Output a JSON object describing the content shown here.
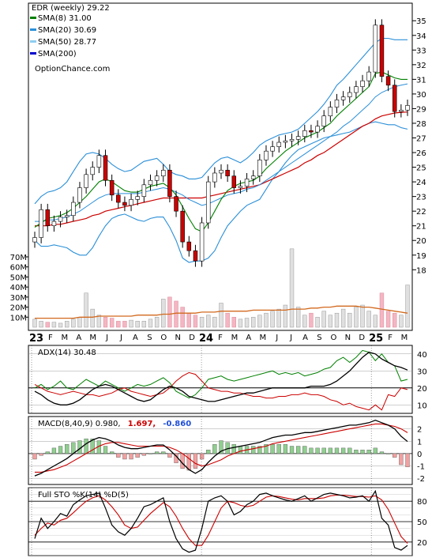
{
  "chart_data": {
    "type": "line",
    "title": "EDR (weekly) 29.22",
    "watermark": "OptionChance.com",
    "x_labels": [
      "23",
      "F",
      "M",
      "A",
      "M",
      "J",
      "J",
      "A",
      "S",
      "O",
      "N",
      "D",
      "24",
      "F",
      "M",
      "A",
      "M",
      "J",
      "J",
      "A",
      "S",
      "O",
      "N",
      "D",
      "25",
      "F",
      "M"
    ],
    "price_panel": {
      "legend": [
        {
          "label": "SMA(8) 31.00",
          "color": "#008000"
        },
        {
          "label": "SMA(20) 30.69",
          "color": "#2a8fd8"
        },
        {
          "label": "SMA(50) 28.77",
          "color": "#8fcdf0"
        },
        {
          "label": "SMA(200)",
          "color": "#0000cc"
        }
      ],
      "ylim": [
        17.8,
        36.2
      ],
      "y_ticks": [
        18,
        19,
        20,
        21,
        22,
        23,
        24,
        25,
        26,
        27,
        28,
        29,
        30,
        31,
        32,
        33,
        34,
        35
      ],
      "volume_ticks": [
        "10M",
        "20M",
        "30M",
        "40M",
        "50M",
        "60M",
        "70M"
      ],
      "volume_max": 70,
      "close": [
        20.2,
        22.1,
        21.0,
        21.3,
        21.6,
        21.7,
        22.6,
        23.6,
        24.5,
        25.0,
        25.8,
        24.1,
        23.1,
        22.6,
        22.4,
        22.8,
        23.0,
        23.8,
        24.1,
        24.4,
        24.8,
        23.0,
        22.0,
        19.9,
        19.3,
        18.6,
        21.2,
        24.0,
        24.6,
        24.8,
        24.4,
        23.6,
        23.7,
        24.2,
        24.4,
        25.5,
        26.1,
        26.4,
        26.7,
        26.8,
        26.9,
        27.1,
        27.5,
        27.4,
        27.8,
        28.5,
        29.1,
        29.6,
        29.8,
        30.1,
        30.5,
        30.9,
        31.5,
        34.7,
        31.2,
        30.6,
        28.8,
        28.9,
        29.22
      ],
      "sma8": [
        20.9,
        21.2,
        21.5,
        21.6,
        21.7,
        21.9,
        22.2,
        22.6,
        23.0,
        23.5,
        24.0,
        24.2,
        24.0,
        23.7,
        23.4,
        23.3,
        23.3,
        23.5,
        23.7,
        23.8,
        23.9,
        23.6,
        23.1,
        22.3,
        21.5,
        20.8,
        20.6,
        21.2,
        22.0,
        22.8,
        23.4,
        23.7,
        23.9,
        24.0,
        24.1,
        24.4,
        24.9,
        25.3,
        25.7,
        26.1,
        26.4,
        26.7,
        27.0,
        27.2,
        27.4,
        27.7,
        28.0,
        28.5,
        28.9,
        29.3,
        29.7,
        30.1,
        30.5,
        31.4,
        31.5,
        31.3,
        31.1,
        31.0,
        31.0
      ],
      "sma20": [
        21.3,
        21.3,
        21.4,
        21.4,
        21.5,
        21.6,
        21.8,
        22.0,
        22.3,
        22.6,
        22.9,
        23.1,
        23.2,
        23.2,
        23.2,
        23.2,
        23.2,
        23.3,
        23.4,
        23.5,
        23.6,
        23.5,
        23.3,
        23.1,
        22.8,
        22.6,
        22.4,
        22.5,
        22.7,
        22.9,
        23.1,
        23.2,
        23.3,
        23.5,
        23.6,
        23.8,
        24.1,
        24.4,
        24.7,
        25.0,
        25.3,
        25.6,
        25.9,
        26.2,
        26.5,
        26.8,
        27.1,
        27.4,
        27.8,
        28.1,
        28.5,
        28.9,
        29.3,
        29.8,
        30.1,
        30.3,
        30.5,
        30.6,
        30.69
      ],
      "sma50": [
        21.0,
        21.0,
        21.0,
        21.1,
        21.1,
        21.2,
        21.3,
        21.4,
        21.5,
        21.7,
        21.8,
        22.0,
        22.1,
        22.2,
        22.3,
        22.4,
        22.5,
        22.6,
        22.7,
        22.8,
        22.9,
        22.9,
        22.9,
        22.9,
        22.9,
        22.9,
        22.9,
        23.0,
        23.1,
        23.2,
        23.3,
        23.4,
        23.5,
        23.6,
        23.7,
        23.8,
        24.0,
        24.2,
        24.4,
        24.6,
        24.8,
        25.0,
        25.3,
        25.5,
        25.8,
        26.0,
        26.3,
        26.6,
        26.9,
        27.2,
        27.5,
        27.8,
        28.0,
        28.3,
        28.5,
        28.6,
        28.7,
        28.75,
        28.77
      ],
      "bb_upper": [
        22.5,
        23.0,
        23.3,
        23.4,
        23.6,
        24.0,
        24.7,
        25.4,
        25.9,
        26.0,
        25.9,
        25.6,
        25.2,
        24.9,
        24.7,
        24.8,
        25.1,
        25.4,
        25.5,
        25.6,
        25.2,
        24.7,
        24.5,
        24.4,
        24.2,
        24.2,
        24.3,
        24.8,
        25.3,
        25.6,
        25.7,
        25.5,
        25.3,
        25.6,
        26.0,
        26.5,
        26.8,
        27.0,
        27.2,
        27.3,
        27.4,
        27.6,
        28.0,
        28.4,
        28.8,
        29.3,
        29.9,
        30.6,
        31.0,
        31.5,
        32.0,
        32.5,
        33.0,
        33.5,
        33.8,
        33.8,
        33.7,
        33.7,
        33.7
      ],
      "bb_lower": [
        20.0,
        19.6,
        19.6,
        19.7,
        19.6,
        19.5,
        19.2,
        19.0,
        19.0,
        19.5,
        20.3,
        21.0,
        21.5,
        21.7,
        21.8,
        21.6,
        21.4,
        21.3,
        21.5,
        21.6,
        21.6,
        20.9,
        20.0,
        18.8,
        18.5,
        18.6,
        18.6,
        18.8,
        19.3,
        20.2,
        21.0,
        21.5,
        22.0,
        22.4,
        22.6,
        22.8,
        23.5,
        24.2,
        24.7,
        25.3,
        25.8,
        26.2,
        26.4,
        26.6,
        26.8,
        27.0,
        27.1,
        27.2,
        27.3,
        27.4,
        27.6,
        27.8,
        28.0,
        28.1,
        28.0,
        27.9,
        27.9,
        27.7,
        27.6
      ],
      "volume": [
        8,
        6,
        5,
        5,
        4,
        6,
        8,
        10,
        34,
        18,
        12,
        10,
        9,
        6,
        6,
        7,
        6,
        6,
        8,
        10,
        28,
        30,
        26,
        20,
        14,
        12,
        10,
        12,
        10,
        24,
        14,
        10,
        8,
        9,
        10,
        12,
        14,
        16,
        18,
        22,
        78,
        20,
        12,
        14,
        10,
        16,
        12,
        14,
        18,
        14,
        20,
        22,
        16,
        12,
        34,
        16,
        14,
        12,
        42
      ],
      "volume_avg": [
        9,
        9,
        9,
        9,
        9,
        9,
        9,
        10,
        10,
        10,
        11,
        11,
        11,
        11,
        11,
        11,
        12,
        12,
        12,
        12,
        13,
        13,
        14,
        14,
        14,
        14,
        15,
        15,
        15,
        16,
        16,
        16,
        16,
        16,
        17,
        17,
        17,
        17,
        17,
        17,
        18,
        18,
        18,
        19,
        19,
        20,
        20,
        21,
        21,
        21,
        21,
        20,
        20,
        19,
        18,
        17,
        16,
        15,
        14
      ]
    },
    "adx_panel": {
      "label": "ADX(14) 30.48",
      "ylim": [
        5,
        45
      ],
      "y_ticks": [
        10,
        20,
        30,
        40
      ],
      "adx": [
        18,
        16,
        13,
        11,
        10,
        10,
        11,
        13,
        16,
        19,
        21,
        22,
        21,
        19,
        17,
        15,
        13,
        12,
        13,
        16,
        19,
        21,
        20,
        18,
        15,
        14,
        13,
        12,
        12,
        13,
        14,
        15,
        16,
        17,
        17,
        18,
        19,
        20,
        20,
        20,
        20,
        20,
        20,
        21,
        21,
        21,
        22,
        24,
        27,
        30,
        34,
        38,
        41,
        40,
        37,
        35,
        33,
        32,
        30.48
      ],
      "plus_di": [
        20,
        22,
        19,
        21,
        24,
        20,
        19,
        22,
        25,
        23,
        21,
        24,
        22,
        20,
        18,
        20,
        22,
        21,
        22,
        24,
        26,
        23,
        18,
        16,
        14,
        16,
        20,
        25,
        26,
        27,
        25,
        24,
        25,
        26,
        27,
        28,
        29,
        30,
        28,
        29,
        28,
        29,
        27,
        28,
        29,
        31,
        32,
        36,
        38,
        35,
        38,
        42,
        41,
        36,
        40,
        35,
        33,
        24,
        25
      ],
      "minus_di": [
        22,
        20,
        18,
        17,
        16,
        17,
        18,
        17,
        16,
        16,
        15,
        16,
        17,
        19,
        20,
        18,
        17,
        16,
        15,
        16,
        17,
        20,
        24,
        27,
        29,
        28,
        24,
        20,
        19,
        18,
        18,
        17,
        17,
        16,
        15,
        15,
        14,
        14,
        15,
        15,
        16,
        16,
        17,
        16,
        16,
        15,
        13,
        12,
        10,
        11,
        9,
        8,
        7,
        10,
        7,
        16,
        15,
        20,
        19
      ]
    },
    "macd_panel": {
      "label": "MACD(8,40,9) 0.980,",
      "macd_value": "1.697,",
      "signal_value": "-0.860",
      "macd_color": "#000000",
      "signal_color": "#cc0000",
      "hist_color": "#1f4fd8",
      "ylim": [
        -2.5,
        3
      ],
      "y_ticks": [
        -2,
        -1,
        0,
        1,
        2
      ],
      "macd": [
        -1.8,
        -1.6,
        -1.3,
        -1.0,
        -0.7,
        -0.4,
        0.0,
        0.4,
        0.8,
        1.1,
        1.3,
        1.2,
        1.0,
        0.7,
        0.5,
        0.4,
        0.4,
        0.5,
        0.6,
        0.7,
        0.7,
        0.3,
        -0.2,
        -0.8,
        -1.3,
        -1.6,
        -1.3,
        -0.7,
        -0.2,
        0.2,
        0.4,
        0.5,
        0.6,
        0.7,
        0.8,
        0.9,
        1.1,
        1.3,
        1.4,
        1.5,
        1.5,
        1.6,
        1.7,
        1.7,
        1.8,
        1.9,
        2.0,
        2.1,
        2.2,
        2.3,
        2.3,
        2.4,
        2.5,
        2.7,
        2.5,
        2.3,
        2.0,
        1.4,
        0.98
      ],
      "signal": [
        -1.5,
        -1.5,
        -1.4,
        -1.3,
        -1.1,
        -0.9,
        -0.6,
        -0.3,
        0.0,
        0.3,
        0.6,
        0.8,
        0.9,
        0.9,
        0.8,
        0.7,
        0.6,
        0.6,
        0.6,
        0.6,
        0.6,
        0.5,
        0.3,
        0.0,
        -0.4,
        -0.8,
        -1.0,
        -0.9,
        -0.7,
        -0.5,
        -0.2,
        0.0,
        0.2,
        0.3,
        0.4,
        0.5,
        0.6,
        0.8,
        0.9,
        1.0,
        1.1,
        1.2,
        1.3,
        1.4,
        1.5,
        1.6,
        1.7,
        1.8,
        1.9,
        2.0,
        2.1,
        2.2,
        2.3,
        2.4,
        2.4,
        2.3,
        2.2,
        2.0,
        1.697
      ]
    },
    "sto_panel": {
      "label": "Full STO %K(14) %D(5)",
      "ylim": [
        0,
        100
      ],
      "y_ticks": [
        20,
        50,
        80
      ],
      "k": [
        25,
        55,
        40,
        50,
        62,
        58,
        75,
        82,
        88,
        90,
        92,
        70,
        45,
        35,
        30,
        40,
        55,
        72,
        75,
        80,
        85,
        50,
        25,
        10,
        5,
        8,
        40,
        80,
        85,
        88,
        80,
        60,
        65,
        75,
        80,
        90,
        92,
        88,
        85,
        82,
        80,
        84,
        88,
        80,
        85,
        90,
        92,
        90,
        88,
        85,
        86,
        88,
        80,
        95,
        55,
        45,
        12,
        8,
        15
      ],
      "d": [
        30,
        40,
        48,
        45,
        52,
        55,
        63,
        72,
        80,
        85,
        88,
        82,
        72,
        60,
        45,
        40,
        42,
        52,
        62,
        70,
        78,
        72,
        58,
        40,
        25,
        15,
        15,
        30,
        50,
        70,
        80,
        78,
        74,
        72,
        74,
        80,
        86,
        88,
        87,
        85,
        83,
        82,
        84,
        84,
        84,
        85,
        88,
        89,
        89,
        88,
        87,
        87,
        86,
        88,
        82,
        68,
        48,
        28,
        18
      ]
    }
  }
}
